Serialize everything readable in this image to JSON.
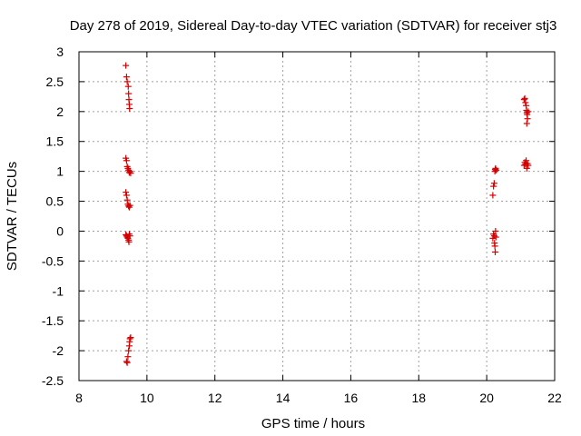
{
  "chart_data": {
    "type": "scatter",
    "title": "Day 278 of 2019, Sidereal Day-to-day VTEC variation (SDTVAR) for receiver stj3",
    "xlabel": "GPS time / hours",
    "ylabel": "SDTVAR / TECUs",
    "xlim": [
      8,
      22
    ],
    "ylim": [
      -2.5,
      3
    ],
    "xticks": [
      8,
      10,
      12,
      14,
      16,
      18,
      20,
      22
    ],
    "yticks": [
      3,
      2.5,
      2,
      1.5,
      1,
      0.5,
      0,
      -0.5,
      -1,
      -1.5,
      -2,
      -2.5
    ],
    "grid": true,
    "marker": "+",
    "color": "#d40000",
    "series": [
      {
        "name": "SDTVAR",
        "points": [
          [
            9.38,
            2.77
          ],
          [
            9.4,
            2.58
          ],
          [
            9.42,
            2.5
          ],
          [
            9.45,
            2.42
          ],
          [
            9.46,
            2.3
          ],
          [
            9.47,
            2.2
          ],
          [
            9.48,
            2.12
          ],
          [
            9.49,
            2.05
          ],
          [
            9.38,
            1.22
          ],
          [
            9.4,
            1.18
          ],
          [
            9.42,
            1.08
          ],
          [
            9.44,
            1.05
          ],
          [
            9.46,
            1.02
          ],
          [
            9.48,
            0.98
          ],
          [
            9.5,
            1.0
          ],
          [
            9.52,
            0.97
          ],
          [
            9.38,
            0.65
          ],
          [
            9.4,
            0.6
          ],
          [
            9.42,
            0.52
          ],
          [
            9.44,
            0.45
          ],
          [
            9.46,
            0.42
          ],
          [
            9.48,
            0.4
          ],
          [
            9.5,
            0.43
          ],
          [
            9.38,
            -0.06
          ],
          [
            9.4,
            -0.08
          ],
          [
            9.42,
            -0.1
          ],
          [
            9.44,
            -0.12
          ],
          [
            9.46,
            -0.15
          ],
          [
            9.48,
            -0.05
          ],
          [
            9.5,
            -0.08
          ],
          [
            9.47,
            -0.18
          ],
          [
            9.4,
            -2.18
          ],
          [
            9.42,
            -2.2
          ],
          [
            9.44,
            -2.1
          ],
          [
            9.46,
            -2.0
          ],
          [
            9.48,
            -1.92
          ],
          [
            9.49,
            -1.85
          ],
          [
            9.5,
            -1.8
          ],
          [
            9.52,
            -1.78
          ],
          [
            20.18,
            0.6
          ],
          [
            20.2,
            0.75
          ],
          [
            20.22,
            0.8
          ],
          [
            20.24,
            1.0
          ],
          [
            20.25,
            1.03
          ],
          [
            20.26,
            1.05
          ],
          [
            20.28,
            1.02
          ],
          [
            20.18,
            -0.12
          ],
          [
            20.2,
            -0.05
          ],
          [
            20.22,
            -0.08
          ],
          [
            20.23,
            -0.2
          ],
          [
            20.24,
            -0.25
          ],
          [
            20.25,
            -0.35
          ],
          [
            20.26,
            0.0
          ],
          [
            20.27,
            -0.1
          ],
          [
            21.1,
            2.2
          ],
          [
            21.12,
            2.22
          ],
          [
            21.14,
            2.15
          ],
          [
            21.16,
            2.1
          ],
          [
            21.17,
            2.02
          ],
          [
            21.18,
            1.98
          ],
          [
            21.19,
            1.95
          ],
          [
            21.2,
            1.88
          ],
          [
            21.18,
            1.8
          ],
          [
            21.22,
            2.0
          ],
          [
            21.1,
            1.1
          ],
          [
            21.12,
            1.15
          ],
          [
            21.14,
            1.12
          ],
          [
            21.16,
            1.18
          ],
          [
            21.18,
            1.05
          ],
          [
            21.2,
            1.13
          ],
          [
            21.22,
            1.1
          ]
        ]
      }
    ]
  }
}
